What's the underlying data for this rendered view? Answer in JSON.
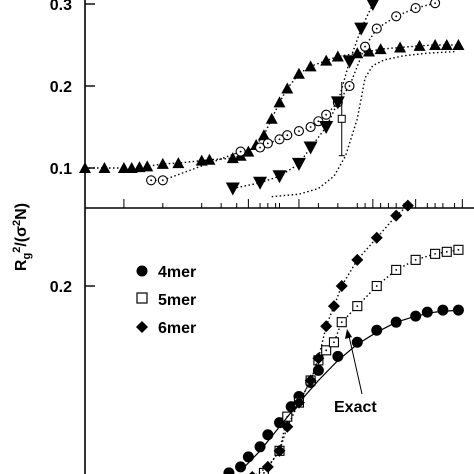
{
  "chart_data": [
    {
      "type": "scatter",
      "panel": "top",
      "ylabel": "R_g^2/(σ^2N)",
      "yticks": [
        {
          "value": 0.1,
          "label": "0.1"
        },
        {
          "value": 0.2,
          "label": "0.2"
        },
        {
          "value": 0.3,
          "label": "0.3"
        }
      ],
      "ylim": [
        0.05,
        0.31
      ],
      "xlim": [
        0,
        1
      ],
      "legend": null,
      "series": [
        {
          "marker": "triangle-up",
          "line": "dotted",
          "x": [
            0.0,
            0.05,
            0.1,
            0.12,
            0.14,
            0.16,
            0.2,
            0.24,
            0.3,
            0.32,
            0.38,
            0.4,
            0.42,
            0.44,
            0.46,
            0.48,
            0.5,
            0.52,
            0.55,
            0.58,
            0.62,
            0.65,
            0.7,
            0.73,
            0.76,
            0.81,
            0.86,
            0.9,
            0.93,
            0.96
          ],
          "y": [
            0.1,
            0.1,
            0.1,
            0.1,
            0.101,
            0.102,
            0.105,
            0.106,
            0.109,
            0.11,
            0.112,
            0.115,
            0.12,
            0.128,
            0.14,
            0.16,
            0.18,
            0.197,
            0.215,
            0.224,
            0.231,
            0.236,
            0.24,
            0.242,
            0.245,
            0.247,
            0.249,
            0.25,
            0.25,
            0.25
          ]
        },
        {
          "marker": "circle-open-dot",
          "line": "dotted",
          "x": [
            0.17,
            0.2,
            0.4,
            0.45,
            0.47,
            0.5,
            0.52,
            0.55,
            0.58,
            0.6,
            0.62,
            0.65,
            0.68,
            0.72,
            0.75,
            0.8,
            0.85,
            0.9
          ],
          "y": [
            0.085,
            0.085,
            0.12,
            0.125,
            0.13,
            0.135,
            0.14,
            0.145,
            0.15,
            0.157,
            0.165,
            0.18,
            0.2,
            0.248,
            0.27,
            0.285,
            0.295,
            0.301
          ]
        },
        {
          "marker": "triangle-down",
          "line": "dotted",
          "x": [
            0.38,
            0.45,
            0.5,
            0.55,
            0.58,
            0.62,
            0.65,
            0.68,
            0.71,
            0.74,
            0.78
          ],
          "y": [
            0.075,
            0.082,
            0.09,
            0.105,
            0.125,
            0.15,
            0.18,
            0.23,
            0.27,
            0.3,
            0.32
          ]
        },
        {
          "marker": "none",
          "line": "dotted",
          "x": [
            0.48,
            0.55,
            0.6,
            0.64,
            0.67,
            0.7,
            0.72,
            0.74,
            0.77,
            0.82,
            0.88,
            0.95
          ],
          "y": [
            0.065,
            0.068,
            0.075,
            0.09,
            0.115,
            0.16,
            0.21,
            0.225,
            0.232,
            0.237,
            0.24,
            0.242
          ]
        },
        {
          "marker": "errorbar-square",
          "line": "none",
          "x": [
            0.66
          ],
          "y": [
            0.16
          ],
          "yerr_low": [
            0.115
          ],
          "yerr_high": [
            0.205
          ]
        }
      ]
    },
    {
      "type": "scatter",
      "panel": "bottom",
      "ylabel": "R_g^2/(σ^2N)",
      "yticks": [
        {
          "value": 0.2,
          "label": "0.2"
        }
      ],
      "ylim": [
        0.1,
        0.26
      ],
      "xlim": [
        0,
        1
      ],
      "legend": "upper-left",
      "series": [
        {
          "name": "4mer",
          "marker": "circle-filled",
          "line": "none",
          "x": [
            0.37,
            0.4,
            0.42,
            0.45,
            0.47,
            0.5,
            0.53,
            0.55,
            0.58,
            0.6,
            0.65,
            0.7,
            0.75,
            0.8,
            0.85,
            0.88,
            0.92,
            0.96
          ],
          "y": [
            0.107,
            0.11,
            0.115,
            0.12,
            0.126,
            0.132,
            0.14,
            0.145,
            0.152,
            0.158,
            0.165,
            0.172,
            0.178,
            0.182,
            0.185,
            0.187,
            0.188,
            0.188
          ]
        },
        {
          "name": "5mer",
          "marker": "square-open-dot",
          "line": "dotted",
          "x": [
            0.46,
            0.5,
            0.52,
            0.55,
            0.58,
            0.6,
            0.62,
            0.64,
            0.66,
            0.7,
            0.75,
            0.8,
            0.85,
            0.9,
            0.93,
            0.96
          ],
          "y": [
            0.107,
            0.118,
            0.135,
            0.142,
            0.153,
            0.163,
            0.168,
            0.172,
            0.182,
            0.19,
            0.2,
            0.208,
            0.213,
            0.216,
            0.217,
            0.218
          ]
        },
        {
          "name": "6mer",
          "marker": "diamond-filled",
          "line": "dotted",
          "x": [
            0.43,
            0.47,
            0.5,
            0.52,
            0.55,
            0.58,
            0.6,
            0.62,
            0.64,
            0.66,
            0.7,
            0.75,
            0.8,
            0.83,
            0.86,
            0.88,
            0.9,
            0.92,
            0.95
          ],
          "y": [
            0.105,
            0.11,
            0.118,
            0.13,
            0.142,
            0.153,
            0.164,
            0.18,
            0.19,
            0.2,
            0.213,
            0.224,
            0.235,
            0.24,
            0.245,
            0.248,
            0.25,
            0.253,
            0.255
          ]
        },
        {
          "name": "Exact",
          "marker": "none",
          "line": "solid",
          "x": [
            0.35,
            0.4,
            0.45,
            0.5,
            0.55,
            0.6,
            0.65,
            0.7,
            0.75,
            0.8,
            0.85,
            0.9,
            0.96
          ],
          "y": [
            0.1,
            0.108,
            0.118,
            0.13,
            0.142,
            0.153,
            0.163,
            0.171,
            0.177,
            0.182,
            0.185,
            0.187,
            0.188
          ]
        }
      ],
      "annotations": [
        {
          "text": "Exact",
          "points_to_series": "Exact"
        }
      ]
    }
  ],
  "legend_labels": [
    "4mer",
    "5mer",
    "6mer"
  ],
  "annotation_text": "Exact",
  "ylabel_text": "R_g^2/(σ^2N)"
}
